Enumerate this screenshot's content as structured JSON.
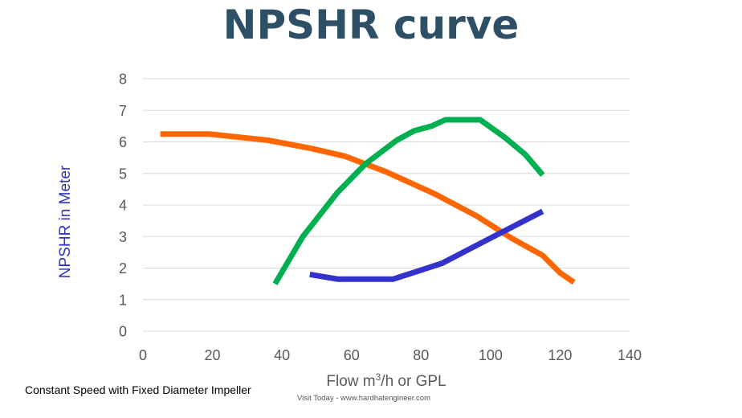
{
  "header": {
    "title": "NPSHR curve"
  },
  "colors": {
    "title": "#2e5066",
    "ylabel": "#3333bb",
    "axis_text": "#595959",
    "grid": "#d9d9d9"
  },
  "footer": {
    "note": "Constant Speed with Fixed Diameter Impeller",
    "watermark": "Visit Today - www.hardhatengineer.com"
  },
  "chart_data": {
    "type": "line",
    "title": "NPSHR curve",
    "xlabel_parts": {
      "pre": "Flow m",
      "sup": "3",
      "post": "/h or GPL"
    },
    "ylabel": "NPSHR in Meter",
    "xlim": [
      0,
      140
    ],
    "ylim": [
      0,
      8
    ],
    "xticks": [
      0,
      20,
      40,
      60,
      80,
      100,
      120,
      140
    ],
    "yticks": [
      0,
      1,
      2,
      3,
      4,
      5,
      6,
      7,
      8
    ],
    "grid": "horizontal",
    "series": [
      {
        "color": "#ff6600",
        "points": [
          [
            5,
            6.25
          ],
          [
            19,
            6.25
          ],
          [
            36,
            6.05
          ],
          [
            48,
            5.8
          ],
          [
            58,
            5.55
          ],
          [
            70,
            5.05
          ],
          [
            84,
            4.35
          ],
          [
            96,
            3.65
          ],
          [
            106,
            2.95
          ],
          [
            115,
            2.4
          ],
          [
            120,
            1.85
          ],
          [
            124,
            1.55
          ]
        ]
      },
      {
        "color": "#00b050",
        "points": [
          [
            38,
            1.5
          ],
          [
            46,
            3.0
          ],
          [
            56,
            4.4
          ],
          [
            64,
            5.3
          ],
          [
            73,
            6.05
          ],
          [
            78,
            6.35
          ],
          [
            83,
            6.5
          ],
          [
            87,
            6.7
          ],
          [
            97,
            6.7
          ],
          [
            104,
            6.15
          ],
          [
            110,
            5.6
          ],
          [
            115,
            4.95
          ]
        ]
      },
      {
        "color": "#3333cc",
        "points": [
          [
            48,
            1.8
          ],
          [
            56,
            1.65
          ],
          [
            72,
            1.65
          ],
          [
            86,
            2.15
          ],
          [
            100,
            2.95
          ],
          [
            115,
            3.8
          ]
        ]
      }
    ]
  }
}
